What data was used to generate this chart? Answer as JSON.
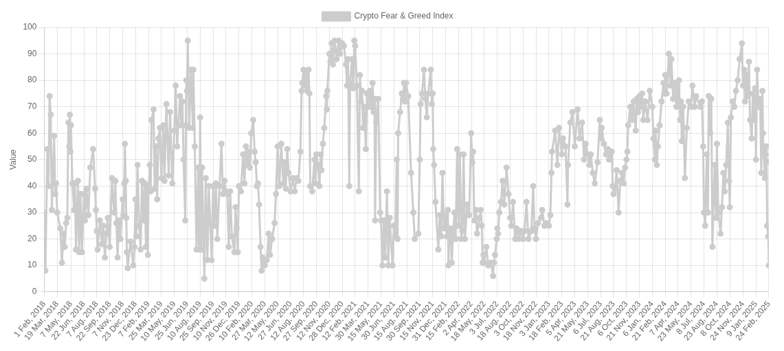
{
  "chart_data": {
    "type": "line",
    "ylabel": "Value",
    "legend": "top",
    "grid": true,
    "marker": "circle",
    "ylim": [
      0,
      100
    ],
    "yticks": [
      0,
      10,
      20,
      30,
      40,
      50,
      60,
      70,
      80,
      90,
      100
    ],
    "xlim": [
      "2018-02-01",
      "2025-02-24"
    ],
    "xticks": [
      {
        "value": "2018-02-01",
        "label": "1 Feb, 2018"
      },
      {
        "value": "2018-03-19",
        "label": "19 Mar, 2018"
      },
      {
        "value": "2018-05-07",
        "label": "7 May, 2018"
      },
      {
        "value": "2018-06-22",
        "label": "22 Jun, 2018"
      },
      {
        "value": "2018-08-07",
        "label": "7 Aug, 2018"
      },
      {
        "value": "2018-09-22",
        "label": "22 Sep, 2018"
      },
      {
        "value": "2018-11-07",
        "label": "7 Nov, 2018"
      },
      {
        "value": "2018-12-23",
        "label": "23 Dec, 2018"
      },
      {
        "value": "2019-02-07",
        "label": "7 Feb, 2019"
      },
      {
        "value": "2019-03-25",
        "label": "25 Mar, 2019"
      },
      {
        "value": "2019-05-10",
        "label": "10 May, 2019"
      },
      {
        "value": "2019-06-25",
        "label": "25 Jun, 2019"
      },
      {
        "value": "2019-08-10",
        "label": "10 Aug, 2019"
      },
      {
        "value": "2019-09-25",
        "label": "25 Sep, 2019"
      },
      {
        "value": "2019-11-10",
        "label": "10 Nov, 2019"
      },
      {
        "value": "2019-12-26",
        "label": "26 Dec, 2019"
      },
      {
        "value": "2020-02-10",
        "label": "10 Feb, 2020"
      },
      {
        "value": "2020-03-27",
        "label": "27 Mar, 2020"
      },
      {
        "value": "2020-05-12",
        "label": "12 May, 2020"
      },
      {
        "value": "2020-06-27",
        "label": "27 Jun, 2020"
      },
      {
        "value": "2020-08-12",
        "label": "12 Aug, 2020"
      },
      {
        "value": "2020-09-27",
        "label": "27 Sep, 2020"
      },
      {
        "value": "2020-11-12",
        "label": "12 Nov, 2020"
      },
      {
        "value": "2020-12-28",
        "label": "28 Dec, 2020"
      },
      {
        "value": "2021-02-12",
        "label": "12 Feb, 2021"
      },
      {
        "value": "2021-03-30",
        "label": "30 Mar, 2021"
      },
      {
        "value": "2021-05-15",
        "label": "15 May, 2021"
      },
      {
        "value": "2021-06-30",
        "label": "30 Jun, 2021"
      },
      {
        "value": "2021-08-15",
        "label": "15 Aug, 2021"
      },
      {
        "value": "2021-09-30",
        "label": "30 Sep, 2021"
      },
      {
        "value": "2021-11-15",
        "label": "15 Nov, 2021"
      },
      {
        "value": "2021-12-31",
        "label": "31 Dec, 2021"
      },
      {
        "value": "2022-02-15",
        "label": "15 Feb, 2022"
      },
      {
        "value": "2022-04-02",
        "label": "2 Apr, 2022"
      },
      {
        "value": "2022-05-18",
        "label": "18 May, 2022"
      },
      {
        "value": "2022-07-03",
        "label": "3 Jul, 2022"
      },
      {
        "value": "2022-08-18",
        "label": "18 Aug, 2022"
      },
      {
        "value": "2022-10-03",
        "label": "3 Oct, 2022"
      },
      {
        "value": "2022-11-18",
        "label": "18 Nov, 2022"
      },
      {
        "value": "2023-01-03",
        "label": "3 Jan, 2023"
      },
      {
        "value": "2023-02-18",
        "label": "18 Feb, 2023"
      },
      {
        "value": "2023-04-05",
        "label": "5 Apr, 2023"
      },
      {
        "value": "2023-05-21",
        "label": "21 May, 2023"
      },
      {
        "value": "2023-07-06",
        "label": "6 Jul, 2023"
      },
      {
        "value": "2023-08-21",
        "label": "21 Aug, 2023"
      },
      {
        "value": "2023-10-06",
        "label": "6 Oct, 2023"
      },
      {
        "value": "2023-11-21",
        "label": "21 Nov, 2023"
      },
      {
        "value": "2024-01-06",
        "label": "6 Jan, 2024"
      },
      {
        "value": "2024-02-21",
        "label": "21 Feb, 2024"
      },
      {
        "value": "2024-04-07",
        "label": "7 Apr, 2024"
      },
      {
        "value": "2024-05-23",
        "label": "23 May, 2024"
      },
      {
        "value": "2024-07-08",
        "label": "8 Jul, 2024"
      },
      {
        "value": "2024-08-23",
        "label": "23 Aug, 2024"
      },
      {
        "value": "2024-10-08",
        "label": "8 Oct, 2024"
      },
      {
        "value": "2024-11-24",
        "label": "24 Nov, 2024"
      },
      {
        "value": "2025-01-09",
        "label": "9 Jan, 2025"
      },
      {
        "value": "2025-02-24",
        "label": "24 Feb, 2025"
      }
    ],
    "x": [
      "2018-02-01",
      "2018-02-05",
      "2018-02-12",
      "2018-02-16",
      "2018-02-20",
      "2018-02-24",
      "2018-02-28",
      "2018-03-08",
      "2018-03-12",
      "2018-03-15",
      "2018-03-19",
      "2018-03-30",
      "2018-04-05",
      "2018-04-10",
      "2018-04-15",
      "2018-04-20",
      "2018-04-24",
      "2018-04-28",
      "2018-05-01",
      "2018-05-03",
      "2018-05-05",
      "2018-05-07",
      "2018-05-12",
      "2018-05-18",
      "2018-05-21",
      "2018-05-25",
      "2018-06-01",
      "2018-06-05",
      "2018-06-10",
      "2018-06-15",
      "2018-06-22",
      "2018-06-26",
      "2018-07-01",
      "2018-07-08",
      "2018-07-15",
      "2018-07-25",
      "2018-08-01",
      "2018-08-04",
      "2018-08-07",
      "2018-08-10",
      "2018-08-18",
      "2018-08-25",
      "2018-08-30",
      "2018-09-05",
      "2018-09-10",
      "2018-09-15",
      "2018-09-22",
      "2018-09-30",
      "2018-10-04",
      "2018-10-08",
      "2018-10-12",
      "2018-10-16",
      "2018-10-20",
      "2018-10-25",
      "2018-10-30",
      "2018-11-07",
      "2018-11-10",
      "2018-11-13",
      "2018-11-15",
      "2018-11-18",
      "2018-11-20",
      "2018-11-22",
      "2018-11-25",
      "2018-12-05",
      "2018-12-15",
      "2018-12-19",
      "2018-12-23",
      "2018-12-26",
      "2018-12-30",
      "2019-01-05",
      "2019-01-10",
      "2019-01-15",
      "2019-01-20",
      "2019-01-25",
      "2019-01-29",
      "2019-02-02",
      "2019-02-05",
      "2019-02-07",
      "2019-02-12",
      "2019-02-15",
      "2019-02-18",
      "2019-02-25",
      "2019-03-01",
      "2019-03-05",
      "2019-03-10",
      "2019-03-15",
      "2019-03-20",
      "2019-03-25",
      "2019-04-01",
      "2019-04-05",
      "2019-04-12",
      "2019-04-20",
      "2019-04-25",
      "2019-05-03",
      "2019-05-10",
      "2019-05-15",
      "2019-05-20",
      "2019-05-30",
      "2019-06-04",
      "2019-06-08",
      "2019-06-12",
      "2019-06-18",
      "2019-06-20",
      "2019-06-22",
      "2019-06-24",
      "2019-06-27",
      "2019-07-02",
      "2019-07-08",
      "2019-07-15",
      "2019-07-17",
      "2019-07-22",
      "2019-07-28",
      "2019-08-03",
      "2019-08-06",
      "2019-08-10",
      "2019-08-14",
      "2019-08-17",
      "2019-08-25",
      "2019-08-30",
      "2019-09-05",
      "2019-09-10",
      "2019-09-20",
      "2019-09-25",
      "2019-09-30",
      "2019-10-05",
      "2019-10-10",
      "2019-10-18",
      "2019-10-25",
      "2019-10-30",
      "2019-11-05",
      "2019-11-10",
      "2019-11-15",
      "2019-11-20",
      "2019-11-25",
      "2019-12-01",
      "2019-12-10",
      "2019-12-14",
      "2019-12-18",
      "2019-12-22",
      "2019-12-26",
      "2020-01-02",
      "2020-01-10",
      "2020-01-15",
      "2020-01-20",
      "2020-01-25",
      "2020-01-30",
      "2020-02-03",
      "2020-02-08",
      "2020-02-15",
      "2020-02-20",
      "2020-02-24",
      "2020-02-28",
      "2020-03-03",
      "2020-03-07",
      "2020-03-12",
      "2020-03-16",
      "2020-03-20",
      "2020-03-27",
      "2020-04-03",
      "2020-04-10",
      "2020-04-15",
      "2020-04-22",
      "2020-05-01",
      "2020-05-06",
      "2020-05-12",
      "2020-05-18",
      "2020-05-25",
      "2020-06-01",
      "2020-06-05",
      "2020-06-10",
      "2020-06-15",
      "2020-06-20",
      "2020-06-27",
      "2020-07-05",
      "2020-07-12",
      "2020-07-18",
      "2020-07-25",
      "2020-08-01",
      "2020-08-05",
      "2020-08-08",
      "2020-08-12",
      "2020-08-16",
      "2020-08-20",
      "2020-08-25",
      "2020-08-30",
      "2020-09-02",
      "2020-09-05",
      "2020-09-12",
      "2020-09-20",
      "2020-09-24",
      "2020-09-27",
      "2020-10-02",
      "2020-10-08",
      "2020-10-12",
      "2020-10-15",
      "2020-10-20",
      "2020-10-25",
      "2020-11-01",
      "2020-11-03",
      "2020-11-05",
      "2020-11-12",
      "2020-11-16",
      "2020-11-20",
      "2020-11-25",
      "2020-12-01",
      "2020-12-08",
      "2020-12-15",
      "2020-12-20",
      "2020-12-28",
      "2021-01-03",
      "2021-01-10",
      "2021-01-14",
      "2021-01-18",
      "2021-01-22",
      "2021-01-25",
      "2021-02-01",
      "2021-02-05",
      "2021-02-09",
      "2021-02-12",
      "2021-02-18",
      "2021-02-25",
      "2021-03-01",
      "2021-03-05",
      "2021-03-08",
      "2021-03-12",
      "2021-03-16",
      "2021-03-22",
      "2021-03-26",
      "2021-03-30",
      "2021-04-05",
      "2021-04-10",
      "2021-04-15",
      "2021-04-19",
      "2021-04-22",
      "2021-04-24",
      "2021-04-28",
      "2021-05-05",
      "2021-05-12",
      "2021-05-15",
      "2021-05-20",
      "2021-05-25",
      "2021-05-30",
      "2021-06-05",
      "2021-06-10",
      "2021-06-15",
      "2021-06-25",
      "2021-06-30",
      "2021-07-05",
      "2021-07-10",
      "2021-07-13",
      "2021-07-15",
      "2021-07-22",
      "2021-07-28",
      "2021-08-01",
      "2021-08-05",
      "2021-08-08",
      "2021-08-12",
      "2021-08-20",
      "2021-08-30",
      "2021-09-07",
      "2021-09-12",
      "2021-09-25",
      "2021-09-30",
      "2021-10-03",
      "2021-10-08",
      "2021-10-15",
      "2021-10-20",
      "2021-10-25",
      "2021-10-30",
      "2021-11-08",
      "2021-11-12",
      "2021-11-15",
      "2021-11-17",
      "2021-11-20",
      "2021-11-25",
      "2021-12-05",
      "2021-12-10",
      "2021-12-15",
      "2021-12-20",
      "2021-12-25",
      "2021-12-31",
      "2022-01-05",
      "2022-01-08",
      "2022-01-10",
      "2022-01-14",
      "2022-01-18",
      "2022-01-22",
      "2022-01-26",
      "2022-02-01",
      "2022-02-05",
      "2022-02-10",
      "2022-02-15",
      "2022-02-20",
      "2022-02-25",
      "2022-03-01",
      "2022-03-05",
      "2022-03-10",
      "2022-03-18",
      "2022-03-25",
      "2022-04-01",
      "2022-04-05",
      "2022-04-08",
      "2022-04-12",
      "2022-04-18",
      "2022-04-22",
      "2022-05-01",
      "2022-05-05",
      "2022-05-09",
      "2022-05-12",
      "2022-05-15",
      "2022-05-18",
      "2022-05-25",
      "2022-06-01",
      "2022-06-10",
      "2022-06-18",
      "2022-06-21",
      "2022-06-25",
      "2022-07-01",
      "2022-07-03",
      "2022-07-06",
      "2022-07-10",
      "2022-07-16",
      "2022-07-22",
      "2022-07-28",
      "2022-08-05",
      "2022-08-12",
      "2022-08-18",
      "2022-08-22",
      "2022-08-28",
      "2022-09-05",
      "2022-09-10",
      "2022-09-18",
      "2022-09-25",
      "2022-10-03",
      "2022-10-08",
      "2022-10-15",
      "2022-10-22",
      "2022-11-01",
      "2022-11-08",
      "2022-11-12",
      "2022-11-18",
      "2022-11-25",
      "2022-12-05",
      "2022-12-10",
      "2022-12-18",
      "2022-12-25",
      "2023-01-03",
      "2023-01-08",
      "2023-01-12",
      "2023-01-14",
      "2023-01-25",
      "2023-02-02",
      "2023-02-08",
      "2023-02-18",
      "2023-02-22",
      "2023-03-03",
      "2023-03-10",
      "2023-03-12",
      "2023-03-20",
      "2023-03-28",
      "2023-04-05",
      "2023-04-15",
      "2023-04-22",
      "2023-05-01",
      "2023-05-08",
      "2023-05-14",
      "2023-05-21",
      "2023-05-26",
      "2023-06-01",
      "2023-06-08",
      "2023-06-15",
      "2023-06-25",
      "2023-07-03",
      "2023-07-06",
      "2023-07-10",
      "2023-07-18",
      "2023-07-25",
      "2023-08-01",
      "2023-08-05",
      "2023-08-15",
      "2023-08-18",
      "2023-08-21",
      "2023-08-26",
      "2023-09-01",
      "2023-09-08",
      "2023-09-14",
      "2023-09-20",
      "2023-09-26",
      "2023-10-01",
      "2023-10-06",
      "2023-10-09",
      "2023-10-12",
      "2023-10-20",
      "2023-10-26",
      "2023-11-01",
      "2023-11-08",
      "2023-11-12",
      "2023-11-16",
      "2023-11-21",
      "2023-11-26",
      "2023-12-01",
      "2023-12-05",
      "2023-12-12",
      "2023-12-20",
      "2023-12-28",
      "2024-01-06",
      "2024-01-10",
      "2024-01-15",
      "2024-01-18",
      "2024-01-22",
      "2024-01-26",
      "2024-02-01",
      "2024-02-08",
      "2024-02-15",
      "2024-02-18",
      "2024-02-21",
      "2024-02-26",
      "2024-03-05",
      "2024-03-10",
      "2024-03-14",
      "2024-03-20",
      "2024-03-26",
      "2024-04-01",
      "2024-04-05",
      "2024-04-07",
      "2024-04-10",
      "2024-04-14",
      "2024-04-17",
      "2024-04-20",
      "2024-04-25",
      "2024-05-01",
      "2024-05-08",
      "2024-05-15",
      "2024-05-23",
      "2024-05-28",
      "2024-06-05",
      "2024-06-10",
      "2024-06-25",
      "2024-07-01",
      "2024-07-05",
      "2024-07-08",
      "2024-07-12",
      "2024-07-18",
      "2024-07-22",
      "2024-07-25",
      "2024-07-30",
      "2024-08-03",
      "2024-08-07",
      "2024-08-15",
      "2024-08-20",
      "2024-08-23",
      "2024-08-28",
      "2024-09-05",
      "2024-09-10",
      "2024-09-15",
      "2024-09-20",
      "2024-09-25",
      "2024-10-01",
      "2024-10-05",
      "2024-10-08",
      "2024-10-12",
      "2024-10-18",
      "2024-10-24",
      "2024-10-30",
      "2024-11-05",
      "2024-11-12",
      "2024-11-20",
      "2024-11-24",
      "2024-11-28",
      "2024-12-01",
      "2024-12-07",
      "2024-12-11",
      "2024-12-15",
      "2024-12-19",
      "2024-12-25",
      "2024-12-29",
      "2025-01-03",
      "2025-01-06",
      "2025-01-09",
      "2025-01-13",
      "2025-01-18",
      "2025-01-24",
      "2025-01-28",
      "2025-02-01",
      "2025-02-03",
      "2025-02-05",
      "2025-02-10",
      "2025-02-12",
      "2025-02-15",
      "2025-02-16",
      "2025-02-18",
      "2025-02-22",
      "2025-02-24"
    ],
    "series": [
      {
        "name": "Crypto Fear & Greed Index",
        "color": "#cccccc",
        "values": [
          30,
          8,
          54,
          40,
          74,
          67,
          31,
          59,
          37,
          41,
          30,
          24,
          11,
          22,
          17,
          26,
          28,
          64,
          55,
          67,
          53,
          63,
          41,
          31,
          41,
          16,
          42,
          15,
          37,
          15,
          37,
          27,
          39,
          29,
          47,
          54,
          39,
          31,
          23,
          16,
          27,
          18,
          25,
          13,
          22,
          28,
          17,
          43,
          35,
          30,
          42,
          26,
          13,
          27,
          20,
          35,
          29,
          41,
          56,
          42,
          28,
          15,
          9,
          19,
          10,
          17,
          35,
          21,
          48,
          25,
          16,
          42,
          27,
          41,
          17,
          40,
          14,
          38,
          48,
          38,
          65,
          69,
          39,
          55,
          35,
          58,
          62,
          43,
          63,
          42,
          71,
          44,
          68,
          41,
          61,
          78,
          55,
          74,
          63,
          72,
          50,
          27,
          63,
          80,
          76,
          95,
          62,
          84,
          62,
          84,
          55,
          16,
          47,
          16,
          66,
          16,
          47,
          5,
          43,
          12,
          40,
          12,
          40,
          25,
          41,
          20,
          40,
          56,
          37,
          42,
          38,
          37,
          17,
          38,
          21,
          15,
          32,
          24,
          15,
          40,
          38,
          52,
          41,
          55,
          48,
          53,
          47,
          60,
          65,
          53,
          49,
          40,
          41,
          33,
          17,
          8,
          13,
          10,
          12,
          22,
          14,
          20,
          26,
          37,
          55,
          40,
          56,
          41,
          49,
          39,
          54,
          45,
          38,
          43,
          38,
          43,
          42,
          53,
          76,
          79,
          84,
          78,
          83,
          76,
          84,
          75,
          40,
          38,
          50,
          41,
          52,
          48,
          40,
          52,
          46,
          56,
          62,
          74,
          69,
          76,
          90,
          87,
          94,
          86,
          95,
          88,
          95,
          90,
          94,
          93,
          86,
          78,
          88,
          40,
          79,
          88,
          77,
          95,
          93,
          78,
          38,
          82,
          72,
          76,
          62,
          70,
          54,
          75,
          70,
          76,
          70,
          79,
          68,
          73,
          27,
          64,
          73,
          30,
          27,
          10,
          27,
          13,
          38,
          10,
          28,
          10,
          25,
          21,
          50,
          20,
          60,
          68,
          75,
          73,
          79,
          72,
          79,
          74,
          45,
          30,
          20,
          22,
          50,
          71,
          75,
          84,
          73,
          66,
          75,
          84,
          71,
          75,
          54,
          48,
          34,
          16,
          29,
          21,
          45,
          24,
          29,
          21,
          31,
          10,
          23,
          24,
          11,
          21,
          30,
          20,
          54,
          25,
          52,
          20,
          23,
          52,
          20,
          33,
          29,
          60,
          49,
          53,
          27,
          31,
          22,
          28,
          31,
          25,
          11,
          14,
          11,
          17,
          10,
          11,
          6,
          11,
          14,
          20,
          24,
          22,
          30,
          34,
          42,
          33,
          47,
          37,
          28,
          25,
          34,
          20,
          24,
          20,
          23,
          20,
          23,
          34,
          20,
          23,
          40,
          24,
          20,
          26,
          28,
          31,
          25,
          26,
          25,
          29,
          45,
          53,
          61,
          48,
          62,
          52,
          58,
          55,
          33,
          48,
          64,
          68,
          55,
          69,
          58,
          64,
          50,
          56,
          52,
          48,
          52,
          45,
          41,
          49,
          65,
          58,
          62,
          56,
          52,
          54,
          50,
          53,
          40,
          37,
          39,
          46,
          30,
          42,
          45,
          41,
          47,
          50,
          53,
          63,
          70,
          65,
          72,
          61,
          73,
          68,
          74,
          70,
          75,
          65,
          72,
          65,
          76,
          70,
          58,
          50,
          61,
          48,
          55,
          63,
          72,
          79,
          75,
          82,
          75,
          90,
          78,
          88,
          73,
          79,
          70,
          78,
          72,
          80,
          65,
          72,
          57,
          70,
          43,
          62,
          72,
          70,
          78,
          70,
          74,
          70,
          72,
          55,
          30,
          25,
          52,
          30,
          74,
          60,
          73,
          17,
          48,
          28,
          56,
          30,
          22,
          32,
          45,
          38,
          48,
          64,
          42,
          32,
          66,
          72,
          70,
          76,
          80,
          88,
          94,
          78,
          84,
          72,
          82,
          74,
          87,
          65,
          58,
          75,
          65,
          77,
          50,
          84,
          70,
          73,
          45,
          76,
          60,
          53,
          43,
          52,
          55,
          49,
          25,
          21,
          10
        ]
      }
    ]
  }
}
